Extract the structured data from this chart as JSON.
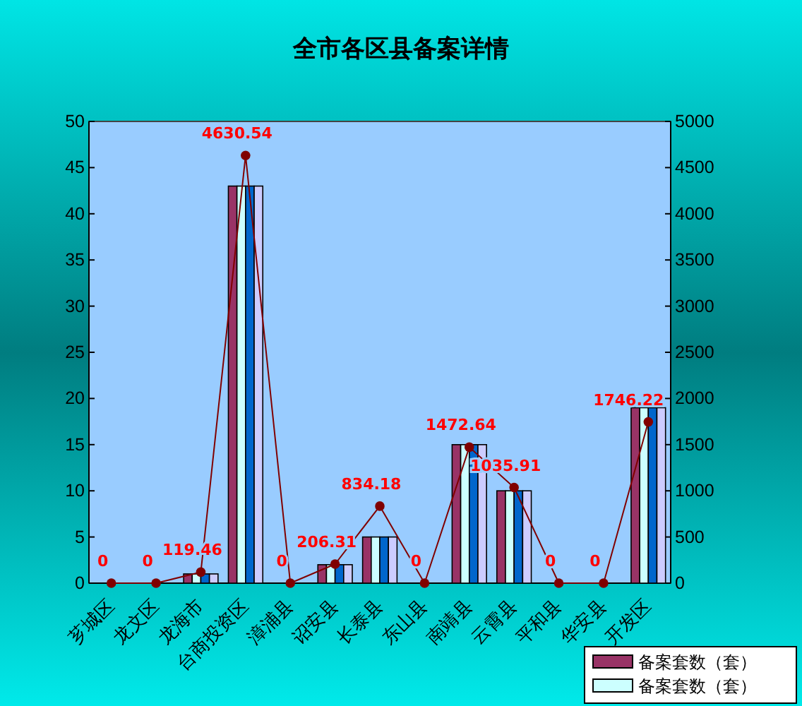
{
  "chart_data": {
    "type": "bar",
    "title": "全市各区县备案详情",
    "categories": [
      "芗城区",
      "龙文区",
      "龙海市",
      "台商投资区",
      "漳浦县",
      "诏安县",
      "长泰县",
      "东山县",
      "南靖县",
      "云霄县",
      "平和县",
      "华安县",
      "开发区"
    ],
    "series": [
      {
        "name": "备案套数（套）",
        "color": "#993366",
        "values": [
          0,
          0,
          1,
          43,
          0,
          2,
          5,
          0,
          15,
          10,
          0,
          0,
          19
        ]
      },
      {
        "name": "备案套数（套）",
        "color": "#ccffff",
        "values": [
          0,
          0,
          1,
          43,
          0,
          2,
          5,
          0,
          15,
          10,
          0,
          0,
          19
        ]
      },
      {
        "color": "#0066cc",
        "values": [
          0,
          0,
          1,
          43,
          0,
          2,
          5,
          0,
          15,
          10,
          0,
          0,
          19
        ]
      },
      {
        "color": "#ccccff",
        "values": [
          0,
          0,
          1,
          43,
          0,
          2,
          5,
          0,
          15,
          10,
          0,
          0,
          19
        ]
      },
      {
        "type": "line",
        "axis": "y2",
        "color": "#800000",
        "marker": "circle",
        "values": [
          0,
          0,
          119.46,
          4630.54,
          0,
          206.31,
          834.18,
          0,
          1472.64,
          1035.91,
          0,
          0,
          1746.22
        ],
        "value_labels": [
          "0",
          "0",
          "119.46",
          "4630.54",
          "0",
          "206.31",
          "834.18",
          "0",
          "1472.64",
          "1035.91",
          "0",
          "0",
          "1746.22"
        ]
      }
    ],
    "ylim": [
      0,
      50
    ],
    "yticks": [
      0,
      5,
      10,
      15,
      20,
      25,
      30,
      35,
      40,
      45,
      50
    ],
    "y2lim": [
      0,
      5000
    ],
    "y2ticks": [
      0,
      500,
      1000,
      1500,
      2000,
      2500,
      3000,
      3500,
      4000,
      4500,
      5000
    ],
    "grid": false,
    "legend": "bottom right"
  }
}
